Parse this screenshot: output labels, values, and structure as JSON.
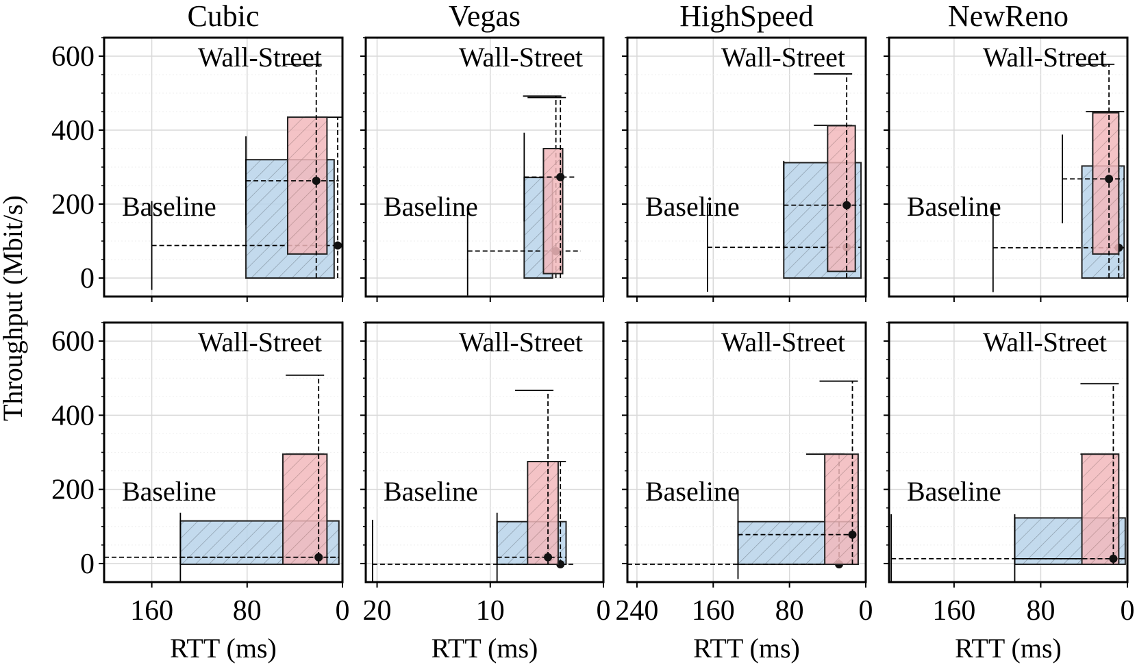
{
  "chart_data": {
    "type": "bar",
    "description_free": true,
    "ylabel": "Throughput (Mbit/s)",
    "xlabel": "RTT (ms)",
    "ylim": [
      -50,
      650
    ],
    "yticks": [
      0,
      200,
      400,
      600
    ],
    "ytick_labels": [
      "0",
      "200",
      "400",
      "600"
    ],
    "colors": {
      "baseline": "#b8d4ea",
      "wallstreet": "#f2b8bc",
      "edge": "#222222"
    },
    "columns": [
      {
        "title": "Cubic",
        "xlim": [
          200,
          0
        ],
        "xticks": [
          160,
          80,
          0
        ],
        "xtick_labels": [
          "160",
          "80",
          "0"
        ],
        "rows": [
          {
            "baseline": {
              "label": "Baseline",
              "rtt": [
                81,
                7
              ],
              "tput": [
                0,
                320
              ],
              "median": [
                4,
                88
              ],
              "whisker_x": [
                160,
                3
              ],
              "whisker_y": [
                0,
                435
              ]
            },
            "wallstreet": {
              "label": "Wall-Street",
              "rtt": [
                46,
                13
              ],
              "tput": [
                65,
                435
              ],
              "median": [
                22,
                263
              ],
              "whisker_x": [
                81,
                3
              ],
              "whisker_y": [
                0,
                578
              ]
            }
          },
          {
            "baseline": {
              "label": "Baseline",
              "rtt": [
                136,
                3
              ],
              "tput": [
                -2,
                115
              ],
              "median": [
                20,
                17
              ],
              "whisker_x": [
                200,
                3
              ],
              "whisker_y": [
                -2,
                295
              ]
            },
            "wallstreet": {
              "label": "Wall-Street",
              "rtt": [
                50,
                13
              ],
              "tput": [
                -2,
                295
              ],
              "median": [
                20,
                17
              ],
              "whisker_x": [
                136,
                3
              ],
              "whisker_y": [
                -2,
                508
              ]
            }
          }
        ]
      },
      {
        "title": "Vegas",
        "xlim": [
          21,
          0
        ],
        "xticks": [
          20,
          10,
          0
        ],
        "xtick_labels": [
          "20",
          "10",
          "0"
        ],
        "rows": [
          {
            "baseline": {
              "label": "Baseline",
              "rtt": [
                7,
                4.5
              ],
              "tput": [
                0,
                272
              ],
              "median": [
                4.2,
                73
              ],
              "whisker_x": [
                12,
                2
              ],
              "whisker_y": [
                0,
                492
              ]
            },
            "wallstreet": {
              "label": "Wall-Street",
              "rtt": [
                5.3,
                3.6
              ],
              "tput": [
                12,
                350
              ],
              "median": [
                3.8,
                273
              ],
              "whisker_x": [
                7,
                2.5
              ],
              "whisker_y": [
                0,
                488
              ]
            }
          },
          {
            "baseline": {
              "label": "Baseline",
              "rtt": [
                9.4,
                3.3
              ],
              "tput": [
                -2,
                113
              ],
              "median": [
                3.8,
                -2
              ],
              "whisker_x": [
                20.4,
                2.5
              ],
              "whisker_y": [
                -2,
                275
              ]
            },
            "wallstreet": {
              "label": "Wall-Street",
              "rtt": [
                6.7,
                4.0
              ],
              "tput": [
                -2,
                275
              ],
              "median": [
                4.9,
                17
              ],
              "whisker_x": [
                9.4,
                3.3
              ],
              "whisker_y": [
                -2,
                467
              ]
            }
          }
        ]
      },
      {
        "title": "HighSpeed",
        "xlim": [
          250,
          0
        ],
        "xticks": [
          240,
          160,
          80,
          0
        ],
        "xtick_labels": [
          "240",
          "160",
          "80",
          "0"
        ],
        "rows": [
          {
            "baseline": {
              "label": "Baseline",
              "rtt": [
                86,
                5
              ],
              "tput": [
                0,
                312
              ],
              "median": [
                20,
                83
              ],
              "whisker_x": [
                166,
                5
              ],
              "whisker_y": [
                0,
                413
              ]
            },
            "wallstreet": {
              "label": "Wall-Street",
              "rtt": [
                40,
                11
              ],
              "tput": [
                18,
                412
              ],
              "median": [
                20,
                197
              ],
              "whisker_x": [
                86,
                5
              ],
              "whisker_y": [
                0,
                552
              ]
            }
          },
          {
            "baseline": {
              "label": "Baseline",
              "rtt": [
                134,
                8
              ],
              "tput": [
                -2,
                113
              ],
              "median": [
                28,
                -2
              ],
              "whisker_x": [
                250,
                8
              ],
              "whisker_y": [
                -2,
                295
              ]
            },
            "wallstreet": {
              "label": "Wall-Street",
              "rtt": [
                43,
                8
              ],
              "tput": [
                -2,
                295
              ],
              "median": [
                14,
                78
              ],
              "whisker_x": [
                134,
                8
              ],
              "whisker_y": [
                -2,
                492
              ]
            }
          }
        ]
      },
      {
        "title": "NewReno",
        "xlim": [
          220,
          0
        ],
        "xticks": [
          160,
          80,
          0
        ],
        "xtick_labels": [
          "160",
          "80",
          "0"
        ],
        "rows": [
          {
            "baseline": {
              "label": "Baseline",
              "rtt": [
                42,
                3
              ],
              "tput": [
                0,
                303
              ],
              "median": [
                8,
                82
              ],
              "whisker_x": [
                124,
                3
              ],
              "whisker_y": [
                0,
                450
              ]
            },
            "wallstreet": {
              "label": "Wall-Street",
              "rtt": [
                32,
                8
              ],
              "tput": [
                65,
                447
              ],
              "median": [
                17,
                268
              ],
              "whisker_x": [
                60,
                3
              ],
              "whisker_y": [
                0,
                578
              ]
            }
          },
          {
            "baseline": {
              "label": "Baseline",
              "rtt": [
                104,
                2
              ],
              "tput": [
                -2,
                123
              ],
              "median": [
                13,
                13
              ],
              "whisker_x": [
                218,
                2
              ],
              "whisker_y": [
                -2,
                295
              ]
            },
            "wallstreet": {
              "label": "Wall-Street",
              "rtt": [
                42,
                8
              ],
              "tput": [
                -2,
                295
              ],
              "median": [
                13,
                13
              ],
              "whisker_x": [
                104,
                2
              ],
              "whisker_y": [
                -2,
                485
              ]
            }
          }
        ]
      }
    ]
  }
}
